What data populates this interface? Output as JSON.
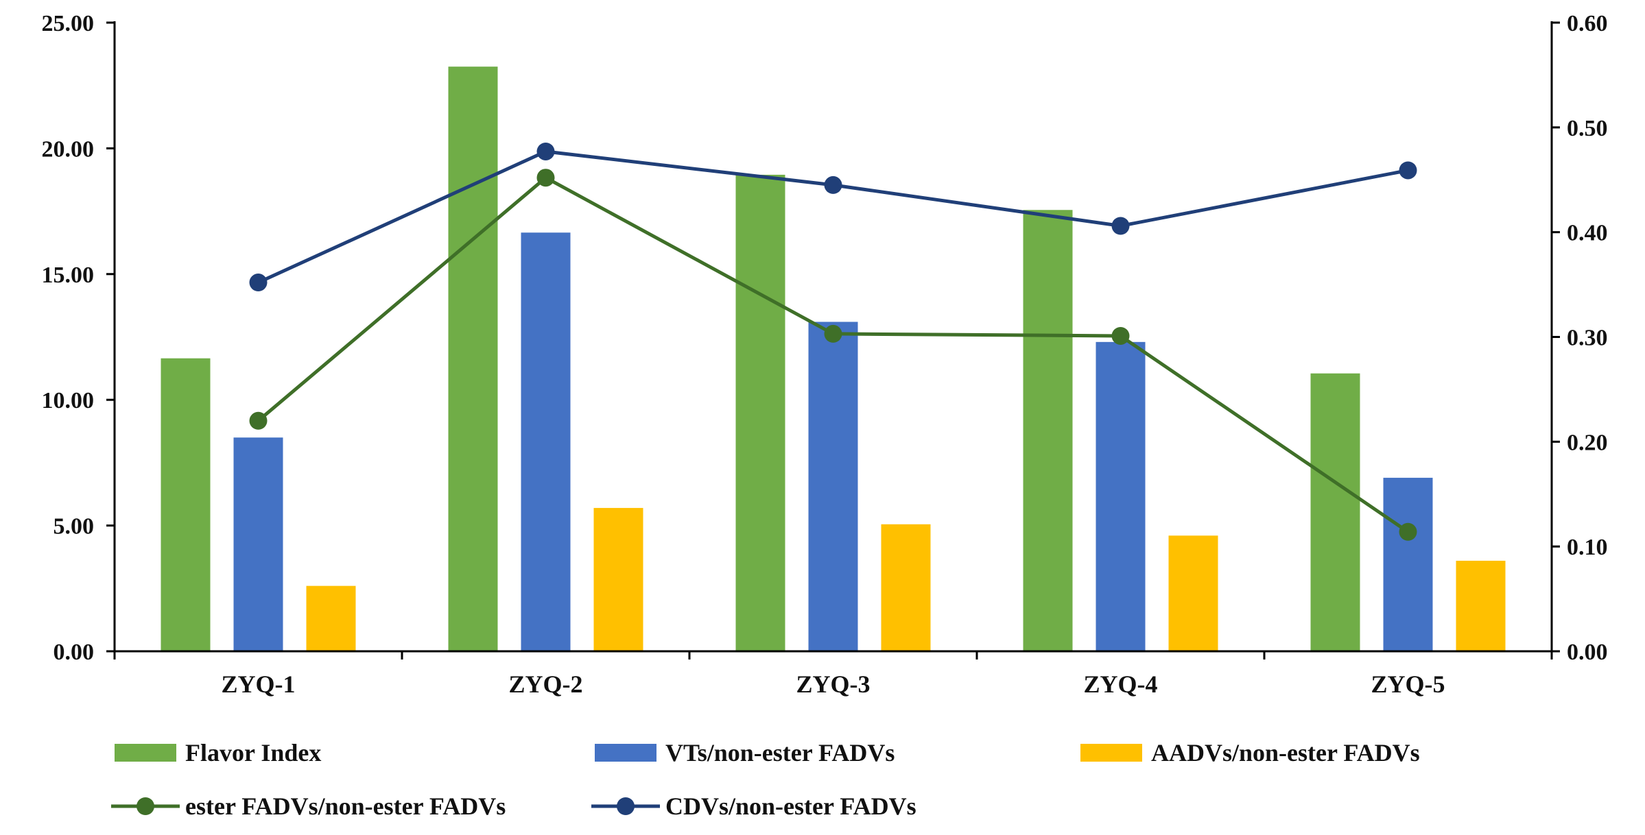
{
  "chart_data": {
    "type": "bar",
    "categories": [
      "ZYQ-1",
      "ZYQ-2",
      "ZYQ-3",
      "ZYQ-4",
      "ZYQ-5"
    ],
    "left_axis": {
      "ylim": [
        0,
        25
      ],
      "ticks": [
        "0.00",
        "5.00",
        "10.00",
        "15.00",
        "20.00",
        "25.00"
      ]
    },
    "right_axis": {
      "ylim": [
        0,
        0.6
      ],
      "ticks": [
        "0.00",
        "0.10",
        "0.20",
        "0.30",
        "0.40",
        "0.50",
        "0.60"
      ]
    },
    "bar_series": [
      {
        "name": "Flavor Index",
        "color": "#70AD47",
        "axis": "left",
        "values": [
          11.65,
          23.25,
          18.95,
          17.55,
          11.05
        ]
      },
      {
        "name": "VTs/non-ester FADVs",
        "color": "#4472C4",
        "axis": "left",
        "values": [
          8.5,
          16.65,
          13.1,
          12.3,
          6.9
        ]
      },
      {
        "name": "AADVs/non-ester FADVs",
        "color": "#FFC000",
        "axis": "left",
        "values": [
          2.6,
          5.7,
          5.05,
          4.6,
          3.6
        ]
      }
    ],
    "line_series": [
      {
        "name": "ester FADVs/non-ester FADVs",
        "color": "#3F6F28",
        "axis": "right",
        "values": [
          0.22,
          0.452,
          0.303,
          0.301,
          0.114
        ]
      },
      {
        "name": "CDVs/non-ester FADVs",
        "color": "#203F78",
        "axis": "right",
        "values": [
          0.352,
          0.477,
          0.445,
          0.406,
          0.459
        ]
      }
    ],
    "legend": {
      "position": "bottom",
      "entries": [
        {
          "label": "Flavor Index",
          "kind": "bar",
          "color": "#70AD47"
        },
        {
          "label": "VTs/non-ester FADVs",
          "kind": "bar",
          "color": "#4472C4"
        },
        {
          "label": "AADVs/non-ester FADVs",
          "kind": "bar",
          "color": "#FFC000"
        },
        {
          "label": "ester FADVs/non-ester FADVs",
          "kind": "line",
          "color": "#3F6F28"
        },
        {
          "label": "CDVs/non-ester FADVs",
          "kind": "line",
          "color": "#203F78"
        }
      ]
    },
    "grid": false
  }
}
